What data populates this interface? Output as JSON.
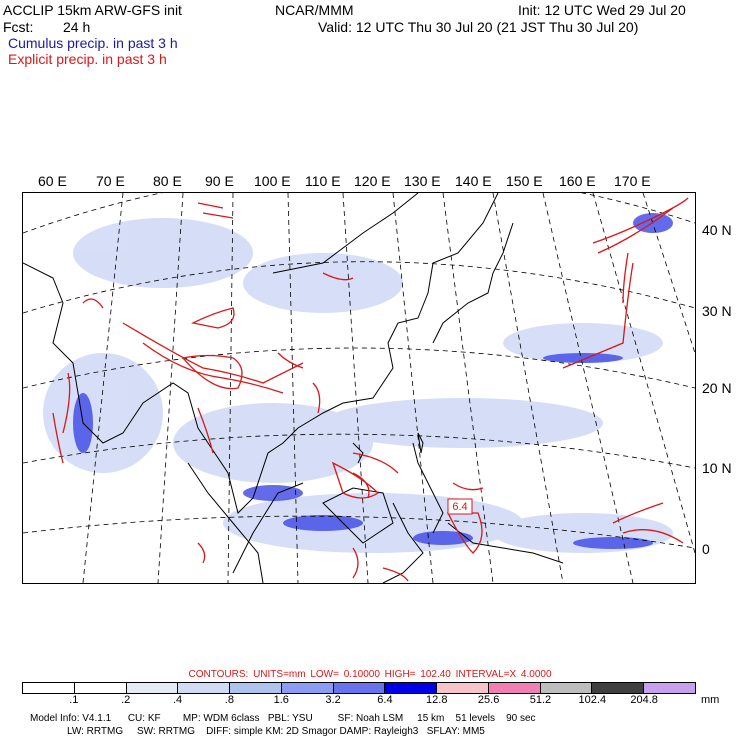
{
  "header": {
    "model": "ACCLIP 15km ARW-GFS init",
    "org": "NCAR/MMM",
    "init": "Init: 12 UTC Wed 29 Jul 20",
    "fcst_label": "Fcst:",
    "fcst_value": "24 h",
    "valid": "Valid: 12 UTC Thu 30 Jul 20 (21 JST Thu 30 Jul 20)",
    "field1": "Cumulus precip. in past 3 h",
    "field2": "Explicit precip. in past 3 h"
  },
  "map": {
    "lon_labels": [
      "60 E",
      "70 E",
      "80 E",
      "90 E",
      "100 E",
      "110 E",
      "120 E",
      "130 E",
      "140 E",
      "150 E",
      "160 E",
      "170 E"
    ],
    "lat_labels": [
      "40 N",
      "30 N",
      "20 N",
      "10 N",
      "0"
    ],
    "box_label": "6.4"
  },
  "contours": "CONTOURS:  UNITS=mm   LOW=  0.10000       HIGH=  102.40       INTERVAL=X  4.0000",
  "colorbar": {
    "ticks": [
      ".1",
      ".2",
      ".4",
      ".8",
      "1.6",
      "3.2",
      "6.4",
      "12.8",
      "25.6",
      "51.2",
      "102.4",
      "204.8"
    ],
    "unit": "mm",
    "colors": [
      "#ffffff",
      "#ffffff",
      "#e6ecf6",
      "#d0dcf4",
      "#aec4ee",
      "#8c9cf2",
      "#6a72ee",
      "#0000e8",
      "#f8c4cc",
      "#f080b4",
      "#bdbdbd",
      "#404040",
      "#c8a0f0"
    ]
  },
  "model_info": {
    "line1": "Model Info: V4.1.1      CU: KF        MP: WDM 6class   PBL: YSU         SF: Noah LSM     15 km    51 levels    90 sec",
    "line2": "LW: RRTMG     SW: RRTMG    DIFF: simple KM: 2D Smagor DAMP: Rayleigh3   SFLAY: MM5"
  },
  "colors": {
    "cumulus": "#1a1aa0",
    "explicit": "#d81818",
    "precip_light": "#c8d4f4",
    "precip_blue": "#3c46e6"
  }
}
